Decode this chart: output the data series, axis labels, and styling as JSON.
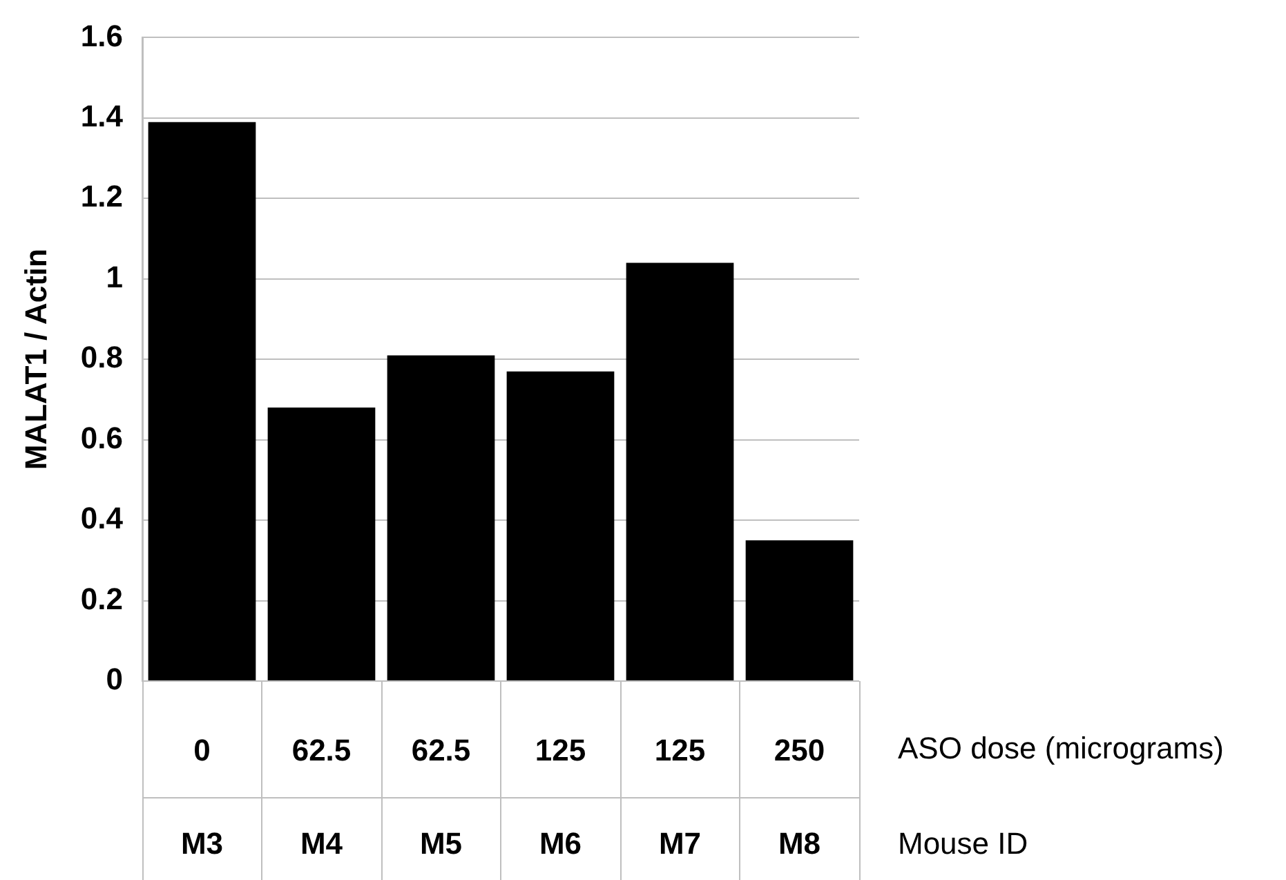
{
  "chart_data": {
    "type": "bar",
    "ylabel": "MALAT1 / Actin",
    "xlabel": "ASO dose (micrograms)",
    "categories": [
      "0",
      "62.5",
      "62.5",
      "125",
      "125",
      "250"
    ],
    "values": [
      1.39,
      0.68,
      0.81,
      0.77,
      1.04,
      0.35
    ],
    "color": "#000000",
    "ylim": [
      0,
      1.6
    ],
    "yticks": [
      0,
      0.2,
      0.4,
      0.6,
      0.8,
      1,
      1.2,
      1.4,
      1.6
    ],
    "grid": "y",
    "legend": false,
    "annotations": [
      "M3",
      "M4",
      "M5",
      "M6",
      "M7",
      "M8",
      "Mouse ID"
    ]
  }
}
